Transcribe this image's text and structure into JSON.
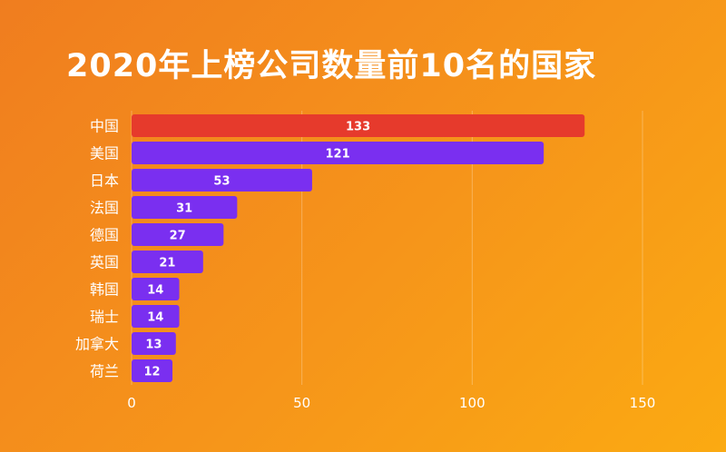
{
  "title": "2020年上榜公司数量前10名的国家",
  "colors": {
    "highlight": "#e63a2c",
    "bar": "#7a2ff0",
    "text": "#ffffff"
  },
  "chart_data": {
    "type": "bar",
    "orientation": "horizontal",
    "title": "2020年上榜公司数量前10名的国家",
    "categories": [
      "中国",
      "美国",
      "日本",
      "法国",
      "德国",
      "英国",
      "韩国",
      "瑞士",
      "加拿大",
      "荷兰"
    ],
    "values": [
      133,
      121,
      53,
      31,
      27,
      21,
      14,
      14,
      13,
      12
    ],
    "highlight_index": 0,
    "xlim": [
      0,
      150
    ],
    "xticks": [
      0,
      50,
      100,
      150
    ],
    "grid": true,
    "data_labels": true
  }
}
